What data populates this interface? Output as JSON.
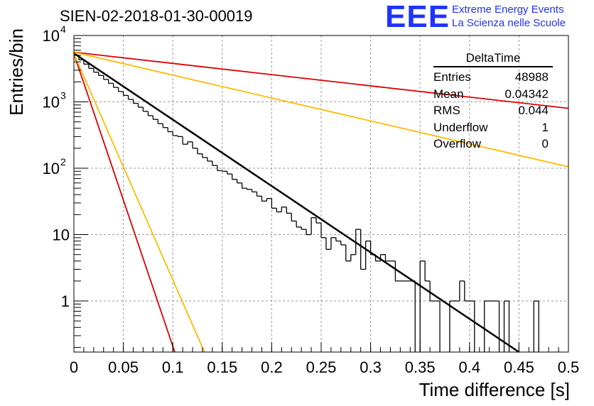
{
  "title": "SIEN-02-2018-01-30-00019",
  "logo": {
    "mark": "EEE",
    "line1": "Extreme Energy Events",
    "line2": "La Scienza nelle Scuole",
    "color": "#1f33ff"
  },
  "stats": {
    "name": "DeltaTime",
    "rows": [
      {
        "label": "Entries",
        "value": "48988"
      },
      {
        "label": "Mean",
        "value": "0.04342"
      },
      {
        "label": "RMS",
        "value": "0.044"
      },
      {
        "label": "Underflow",
        "value": "1"
      },
      {
        "label": "Overflow",
        "value": "0"
      }
    ]
  },
  "chart_data": {
    "type": "line",
    "title": "SIEN-02-2018-01-30-00019",
    "xlabel": "Time difference [s]",
    "ylabel": "Entries/bin",
    "xlim": [
      0,
      0.5
    ],
    "ylim": [
      0.17,
      10000
    ],
    "yscale": "log",
    "grid": true,
    "x_ticks": [
      {
        "v": 0,
        "label": "0"
      },
      {
        "v": 0.05,
        "label": "0.05"
      },
      {
        "v": 0.1,
        "label": "0.1"
      },
      {
        "v": 0.15,
        "label": "0.15"
      },
      {
        "v": 0.2,
        "label": "0.2"
      },
      {
        "v": 0.25,
        "label": "0.25"
      },
      {
        "v": 0.3,
        "label": "0.3"
      },
      {
        "v": 0.35,
        "label": "0.35"
      },
      {
        "v": 0.4,
        "label": "0.4"
      },
      {
        "v": 0.45,
        "label": "0.45"
      },
      {
        "v": 0.5,
        "label": "0.5"
      }
    ],
    "y_ticks": [
      {
        "v": 1,
        "label": "1"
      },
      {
        "v": 10,
        "label": "10"
      },
      {
        "v": 100,
        "base": "10",
        "exp": "2"
      },
      {
        "v": 1000,
        "base": "10",
        "exp": "3"
      },
      {
        "v": 10000,
        "base": "10",
        "exp": "4"
      }
    ],
    "histogram": {
      "bin_width": 0.005,
      "color": "#000000",
      "values": [
        5050,
        4300,
        3700,
        3200,
        2800,
        2500,
        2180,
        1900,
        1650,
        1430,
        1250,
        1090,
        950,
        830,
        720,
        620,
        545,
        470,
        410,
        355,
        310,
        300,
        230,
        250,
        200,
        165,
        145,
        128,
        110,
        92,
        90,
        82,
        68,
        60,
        50,
        48,
        44,
        38,
        32,
        35,
        25,
        22,
        26,
        21,
        16,
        13,
        12,
        10,
        18,
        15,
        9,
        6,
        9,
        8,
        7,
        4,
        5,
        12,
        3,
        8,
        5,
        4,
        5,
        4,
        4,
        2,
        2,
        2,
        2,
        0,
        4,
        2,
        1,
        1,
        0,
        0,
        1,
        1,
        2,
        1,
        1,
        0,
        0,
        1,
        1,
        1,
        0,
        1,
        0,
        0,
        0,
        0,
        0,
        1,
        0,
        0,
        0,
        0,
        0,
        0
      ]
    },
    "series": [
      {
        "color": "#000000",
        "width": 2.5,
        "x": [
          0,
          0.45
        ],
        "y": [
          5400,
          0.17
        ]
      },
      {
        "color": "#dd0000",
        "width": 1.8,
        "x": [
          0,
          0.5
        ],
        "y": [
          5600,
          800
        ]
      },
      {
        "color": "#ffbb00",
        "width": 1.8,
        "x": [
          0,
          0.5
        ],
        "y": [
          5600,
          105
        ]
      },
      {
        "color": "#dd0000",
        "width": 1.8,
        "x": [
          0,
          0.102
        ],
        "y": [
          5300,
          0.17
        ]
      },
      {
        "color": "#ffbb00",
        "width": 1.8,
        "x": [
          0,
          0.132
        ],
        "y": [
          5300,
          0.17
        ]
      }
    ]
  }
}
